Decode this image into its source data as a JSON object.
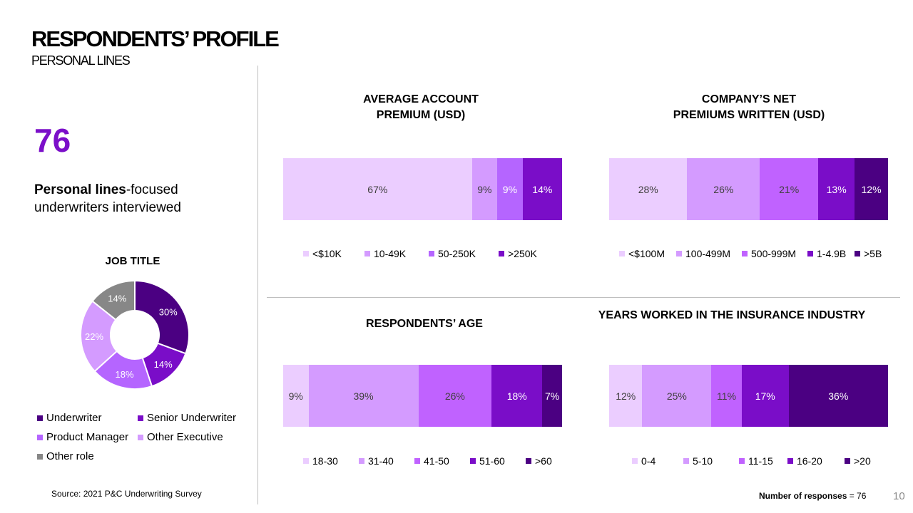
{
  "header": {
    "title": "RESPONDENTS’ PROFILE",
    "subtitle": "PERSONAL LINES"
  },
  "summary": {
    "count": "76",
    "desc_bold": "Personal lines",
    "desc_rest": "-focused underwriters interviewed"
  },
  "footer": {
    "source": "Source: 2021 P&C Underwriting Survey",
    "responses_label": "Number of responses",
    "responses_value": " = 76",
    "page": "10"
  },
  "chart_data": [
    {
      "id": "job_title",
      "type": "pie",
      "title": "JOB TITLE",
      "categories": [
        "Underwriter",
        "Senior Underwriter",
        "Product Manager",
        "Other Executive",
        "Other role"
      ],
      "values": [
        30,
        14,
        18,
        22,
        14
      ],
      "labels": [
        "30%",
        "14%",
        "18%",
        "22%",
        "14%"
      ],
      "colors": [
        "#4b0082",
        "#7a0dc8",
        "#b565ff",
        "#d49bff",
        "#878787"
      ],
      "label_colors": [
        "#ffffff",
        "#ffffff",
        "#ffffff",
        "#ffffff",
        "#ffffff"
      ],
      "legend": "bottom"
    },
    {
      "id": "avg_premium",
      "type": "bar",
      "stacked": true,
      "orientation": "horizontal",
      "title_lines": [
        "AVERAGE ACCOUNT",
        "PREMIUM (USD)"
      ],
      "categories": [
        "<$10K",
        "10-49K",
        "50-250K",
        ">250K"
      ],
      "values": [
        67,
        9,
        9,
        14
      ],
      "labels": [
        "67%",
        "9%",
        "9%",
        "14%"
      ],
      "colors": [
        "#ebcdff",
        "#d49bff",
        "#b565ff",
        "#7a0dc8"
      ],
      "label_colors": [
        "#404040",
        "#404040",
        "#ffffff",
        "#ffffff"
      ],
      "legend": "bottom"
    },
    {
      "id": "net_premiums",
      "type": "bar",
      "stacked": true,
      "orientation": "horizontal",
      "title_lines": [
        "COMPANY’S NET",
        "PREMIUMS WRITTEN (USD)"
      ],
      "categories": [
        "<$100M",
        "100-499M",
        "500-999M",
        "1-4.9B",
        ">5B"
      ],
      "values": [
        28,
        26,
        21,
        13,
        12
      ],
      "labels": [
        "28%",
        "26%",
        "21%",
        "13%",
        "12%"
      ],
      "colors": [
        "#ebcdff",
        "#d49bff",
        "#c062ff",
        "#7a0dc8",
        "#4b0082"
      ],
      "label_colors": [
        "#404040",
        "#404040",
        "#404040",
        "#ffffff",
        "#ffffff"
      ],
      "legend": "bottom"
    },
    {
      "id": "age",
      "type": "bar",
      "stacked": true,
      "orientation": "horizontal",
      "title_lines": [
        "RESPONDENTS’ AGE"
      ],
      "categories": [
        "18-30",
        "31-40",
        "41-50",
        "51-60",
        ">60"
      ],
      "values": [
        9,
        39,
        26,
        18,
        7
      ],
      "labels": [
        "9%",
        "39%",
        "26%",
        "18%",
        "7%"
      ],
      "colors": [
        "#ebcdff",
        "#d49bff",
        "#c062ff",
        "#7a0dc8",
        "#4b0082"
      ],
      "label_colors": [
        "#404040",
        "#404040",
        "#404040",
        "#ffffff",
        "#ffffff"
      ],
      "legend": "bottom"
    },
    {
      "id": "years",
      "type": "bar",
      "stacked": true,
      "orientation": "horizontal",
      "title_lines": [
        "YEARS WORKED IN THE INSURANCE INDUSTRY"
      ],
      "categories": [
        "0-4",
        "5-10",
        "11-15",
        "16-20",
        ">20"
      ],
      "values": [
        12,
        25,
        11,
        17,
        36
      ],
      "labels": [
        "12%",
        "25%",
        "11%",
        "17%",
        "36%"
      ],
      "colors": [
        "#ebcdff",
        "#d49bff",
        "#c062ff",
        "#7a0dc8",
        "#4b0082"
      ],
      "label_colors": [
        "#404040",
        "#404040",
        "#404040",
        "#ffffff",
        "#ffffff"
      ],
      "legend": "bottom"
    }
  ]
}
